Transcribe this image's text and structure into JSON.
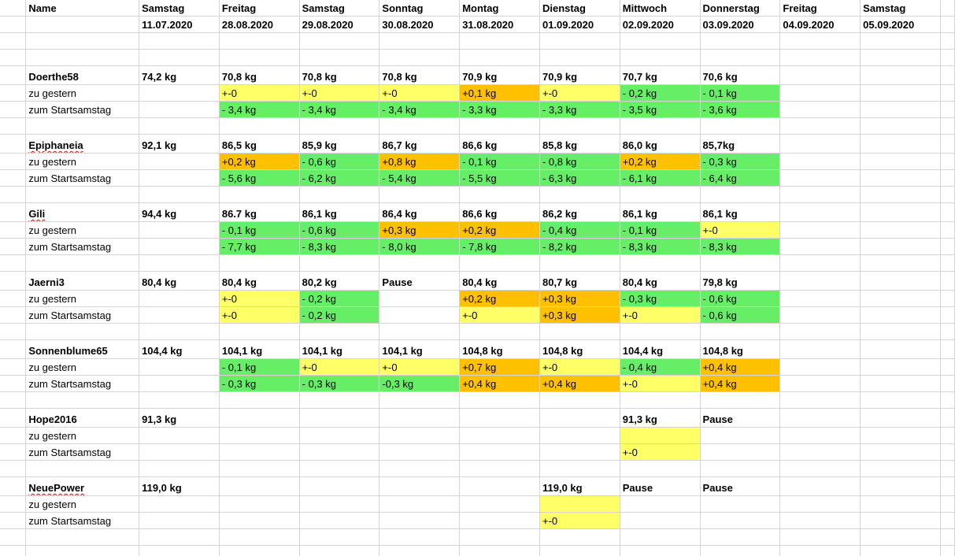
{
  "header": {
    "name_label": "Name",
    "columns": [
      {
        "day": "Samstag",
        "date": "11.07.2020"
      },
      {
        "day": "Freitag",
        "date": "28.08.2020"
      },
      {
        "day": "Samstag",
        "date": "29.08.2020"
      },
      {
        "day": "Sonntag",
        "date": "30.08.2020"
      },
      {
        "day": "Montag",
        "date": "31.08.2020"
      },
      {
        "day": "Dienstag",
        "date": "01.09.2020"
      },
      {
        "day": "Mittwoch",
        "date": "02.09.2020"
      },
      {
        "day": "Donnerstag",
        "date": "03.09.2020"
      },
      {
        "day": "Freitag",
        "date": "04.09.2020"
      },
      {
        "day": "Samstag",
        "date": "05.09.2020"
      }
    ]
  },
  "colors": {
    "yellow": "#ffff66",
    "orange": "#ffc000",
    "green": "#66ee66",
    "gridline": "#d4d4d4"
  },
  "row_labels": {
    "diff_yesterday": "zu gestern",
    "diff_start": "zum Startsamstag"
  },
  "people": [
    {
      "name": "Doerthe58",
      "spellcheck": false,
      "weights": [
        "74,2 kg",
        "70,8 kg",
        "70,8 kg",
        "70,8 kg",
        "70,9 kg",
        "70,9 kg",
        "70,7 kg",
        "70,6 kg",
        "",
        ""
      ],
      "yesterday": [
        "",
        "+-0",
        "+-0",
        "+-0",
        "+0,1 kg",
        "+-0",
        "- 0,2 kg",
        "- 0,1 kg",
        "",
        ""
      ],
      "yesterday_colors": [
        "",
        "y",
        "y",
        "y",
        "o",
        "y",
        "g",
        "g",
        "",
        ""
      ],
      "start": [
        "",
        "- 3,4 kg",
        "- 3,4 kg",
        "- 3,4 kg",
        "- 3,3 kg",
        "- 3,3 kg",
        "- 3,5 kg",
        "- 3,6 kg",
        "",
        ""
      ],
      "start_colors": [
        "",
        "g",
        "g",
        "g",
        "g",
        "g",
        "g",
        "g",
        "",
        ""
      ]
    },
    {
      "name": "Epiphaneia",
      "spellcheck": true,
      "weights": [
        "92,1 kg",
        "86,5 kg",
        "85,9 kg",
        "86,7 kg",
        "86,6 kg",
        "85,8 kg",
        "86,0 kg",
        "85,7kg",
        "",
        ""
      ],
      "yesterday": [
        "",
        "+0,2 kg",
        "- 0,6 kg",
        "+0,8 kg",
        "- 0,1 kg",
        "- 0,8 kg",
        "+0,2 kg",
        "- 0,3 kg",
        "",
        ""
      ],
      "yesterday_colors": [
        "",
        "o",
        "g",
        "o",
        "g",
        "g",
        "o",
        "g",
        "",
        ""
      ],
      "start": [
        "",
        "- 5,6 kg",
        "- 6,2 kg",
        "- 5,4 kg",
        "- 5,5 kg",
        "- 6,3 kg",
        "- 6,1 kg",
        "- 6,4 kg",
        "",
        ""
      ],
      "start_colors": [
        "",
        "g",
        "g",
        "g",
        "g",
        "g",
        "g",
        "g",
        "",
        ""
      ]
    },
    {
      "name": "Gili",
      "spellcheck": true,
      "weights": [
        "94,4 kg",
        "86.7 kg",
        "86,1 kg",
        "86,4 kg",
        "86,6 kg",
        "86,2 kg",
        "86,1 kg",
        "86,1 kg",
        "",
        ""
      ],
      "yesterday": [
        "",
        "- 0,1 kg",
        "- 0,6 kg",
        "+0,3 kg",
        "+0,2 kg",
        "- 0,4 kg",
        "- 0,1 kg",
        "+-0",
        "",
        ""
      ],
      "yesterday_colors": [
        "",
        "g",
        "g",
        "o",
        "o",
        "g",
        "g",
        "y",
        "",
        ""
      ],
      "start": [
        "",
        "- 7,7 kg",
        "- 8,3 kg",
        "- 8,0 kg",
        "- 7,8 kg",
        "- 8,2 kg",
        "- 8,3 kg",
        "- 8,3 kg",
        "",
        ""
      ],
      "start_colors": [
        "",
        "g",
        "g",
        "g",
        "g",
        "g",
        "g",
        "g",
        "",
        ""
      ]
    },
    {
      "name": "Jaerni3",
      "spellcheck": false,
      "weights": [
        "80,4 kg",
        "80,4 kg",
        "80,2 kg",
        "Pause",
        "80,4 kg",
        "80,7 kg",
        "80,4 kg",
        "79,8 kg",
        "",
        ""
      ],
      "yesterday": [
        "",
        "+-0",
        "- 0,2 kg",
        "",
        "+0,2 kg",
        "+0,3 kg",
        "- 0,3 kg",
        "- 0,6 kg",
        "",
        ""
      ],
      "yesterday_colors": [
        "",
        "y",
        "g",
        "",
        "o",
        "o",
        "g",
        "g",
        "",
        ""
      ],
      "start": [
        "",
        "+-0",
        "- 0,2 kg",
        "",
        "+-0",
        "+0,3 kg",
        "+-0",
        "- 0,6 kg",
        "",
        ""
      ],
      "start_colors": [
        "",
        "y",
        "g",
        "",
        "y",
        "o",
        "y",
        "g",
        "",
        ""
      ]
    },
    {
      "name": "Sonnenblume65",
      "spellcheck": false,
      "weights": [
        "104,4 kg",
        "104,1 kg",
        "104,1 kg",
        "104,1 kg",
        "104,8 kg",
        "104,8 kg",
        "104,4 kg",
        "104,8 kg",
        "",
        ""
      ],
      "yesterday": [
        "",
        "- 0,1 kg",
        "+-0",
        "+-0",
        "+0,7 kg",
        "+-0",
        "- 0,4 kg",
        "+0,4 kg",
        "",
        ""
      ],
      "yesterday_colors": [
        "",
        "g",
        "y",
        "y",
        "o",
        "y",
        "g",
        "o",
        "",
        ""
      ],
      "start": [
        "",
        "- 0,3 kg",
        "- 0,3 kg",
        "-0,3 kg",
        "+0,4 kg",
        "+0,4 kg",
        "+-0",
        "+0,4 kg",
        "",
        ""
      ],
      "start_colors": [
        "",
        "g",
        "g",
        "g",
        "o",
        "o",
        "y",
        "o",
        "",
        ""
      ]
    },
    {
      "name": "Hope2016",
      "spellcheck": false,
      "weights": [
        "91,3 kg",
        "",
        "",
        "",
        "",
        "",
        "91,3 kg",
        "Pause",
        "",
        ""
      ],
      "yesterday": [
        "",
        "",
        "",
        "",
        "",
        "",
        "",
        "",
        "",
        ""
      ],
      "yesterday_colors": [
        "",
        "",
        "",
        "",
        "",
        "",
        "y",
        "",
        "",
        ""
      ],
      "start": [
        "",
        "",
        "",
        "",
        "",
        "",
        "+-0",
        "",
        "",
        ""
      ],
      "start_colors": [
        "",
        "",
        "",
        "",
        "",
        "",
        "y",
        "",
        "",
        ""
      ]
    },
    {
      "name": "NeuePower",
      "spellcheck": true,
      "weights": [
        "119,0 kg",
        "",
        "",
        "",
        "",
        "119,0 kg",
        "Pause",
        "Pause",
        "",
        ""
      ],
      "yesterday": [
        "",
        "",
        "",
        "",
        "",
        "",
        "",
        "",
        "",
        ""
      ],
      "yesterday_colors": [
        "",
        "",
        "",
        "",
        "",
        "y",
        "",
        "",
        "",
        ""
      ],
      "start": [
        "",
        "",
        "",
        "",
        "",
        "+-0",
        "",
        "",
        "",
        ""
      ],
      "start_colors": [
        "",
        "",
        "",
        "",
        "",
        "y",
        "",
        "",
        "",
        ""
      ]
    }
  ]
}
